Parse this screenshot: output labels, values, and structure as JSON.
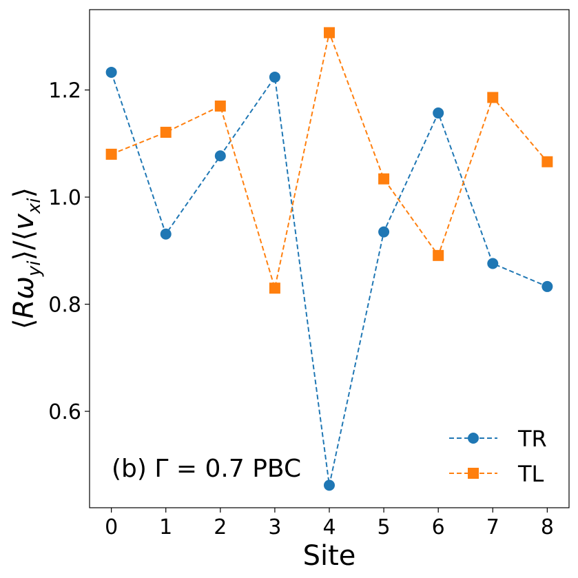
{
  "chart_data": {
    "type": "line",
    "title": "",
    "xlabel": "Site",
    "ylabel_parts": {
      "open": "⟨",
      "R": "R",
      "omega": "ω",
      "omega_sub": "yi",
      "mid": "⟩/⟨",
      "v": "v",
      "v_sub": "xi",
      "close": "⟩"
    },
    "x": [
      0,
      1,
      2,
      3,
      4,
      5,
      6,
      7,
      8
    ],
    "x_tick_labels": [
      "0",
      "1",
      "2",
      "3",
      "4",
      "5",
      "6",
      "7",
      "8"
    ],
    "y_ticks": [
      0.6,
      0.8,
      1.0,
      1.2
    ],
    "y_tick_labels": [
      "0.6",
      "0.8",
      "1.0",
      "1.2"
    ],
    "xlim": [
      -0.4,
      8.4
    ],
    "ylim": [
      0.42,
      1.35
    ],
    "grid": false,
    "legend_position": "bottom-right",
    "series": [
      {
        "name": "TR",
        "color": "#1f77b4",
        "marker": "circle",
        "linestyle": "dashed",
        "values": [
          1.233,
          0.931,
          1.077,
          1.224,
          0.462,
          0.935,
          1.157,
          0.876,
          0.833
        ]
      },
      {
        "name": "TL",
        "color": "#ff7f0e",
        "marker": "square",
        "linestyle": "dashed",
        "values": [
          1.08,
          1.121,
          1.17,
          0.83,
          1.307,
          1.034,
          0.891,
          1.186,
          1.066
        ]
      }
    ],
    "annotation": {
      "prefix": "(b) ",
      "gamma": "Γ",
      "rest": " = 0.7 PBC"
    }
  }
}
